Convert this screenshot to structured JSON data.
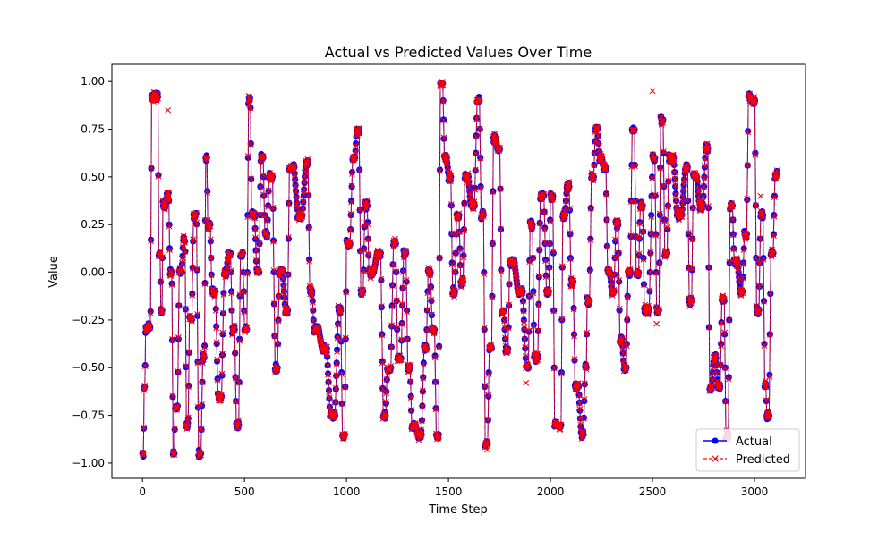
{
  "chart_data": {
    "type": "line",
    "title": "Actual vs Predicted Values Over Time",
    "xlabel": "Time Step",
    "ylabel": "Value",
    "xlim": [
      -150,
      3250
    ],
    "ylim": [
      -1.08,
      1.09
    ],
    "xticks": [
      0,
      500,
      1000,
      1500,
      2000,
      2500,
      3000
    ],
    "yticks": [
      -1.0,
      -0.75,
      -0.5,
      -0.25,
      0.0,
      0.25,
      0.5,
      0.75,
      1.0
    ],
    "xtick_labels": [
      "0",
      "500",
      "1000",
      "1500",
      "2000",
      "2500",
      "3000"
    ],
    "ytick_labels": [
      "−1.00",
      "−0.75",
      "−0.50",
      "−0.25",
      "0.00",
      "0.25",
      "0.50",
      "0.75",
      "1.00"
    ],
    "grid": false,
    "legend_position": "lower-right",
    "x_range": [
      0,
      3110
    ],
    "series": [
      {
        "name": "Actual",
        "color": "#0000ff",
        "marker": "circle",
        "line_style": "solid",
        "keyframes": [
          [
            0,
            -0.95
          ],
          [
            8,
            -0.6
          ],
          [
            15,
            -0.3
          ],
          [
            30,
            -0.28
          ],
          [
            45,
            0.92
          ],
          [
            70,
            0.92
          ],
          [
            80,
            0.1
          ],
          [
            90,
            -0.2
          ],
          [
            100,
            0.35
          ],
          [
            120,
            0.4
          ],
          [
            135,
            0.0
          ],
          [
            150,
            -0.95
          ],
          [
            160,
            -0.7
          ],
          [
            180,
            0.0
          ],
          [
            200,
            0.17
          ],
          [
            215,
            -0.8
          ],
          [
            230,
            -0.25
          ],
          [
            250,
            0.3
          ],
          [
            275,
            -0.95
          ],
          [
            295,
            -0.45
          ],
          [
            310,
            0.6
          ],
          [
            320,
            0.25
          ],
          [
            340,
            -0.1
          ],
          [
            370,
            -0.65
          ],
          [
            400,
            0.0
          ],
          [
            420,
            0.1
          ],
          [
            440,
            -0.3
          ],
          [
            460,
            -0.8
          ],
          [
            480,
            0.1
          ],
          [
            500,
            -0.3
          ],
          [
            520,
            0.9
          ],
          [
            535,
            0.3
          ],
          [
            560,
            0.0
          ],
          [
            580,
            0.6
          ],
          [
            600,
            0.2
          ],
          [
            620,
            0.5
          ],
          [
            650,
            -0.5
          ],
          [
            670,
            0.0
          ],
          [
            700,
            -0.2
          ],
          [
            720,
            0.55
          ],
          [
            760,
            0.3
          ],
          [
            800,
            0.57
          ],
          [
            820,
            -0.1
          ],
          [
            840,
            -0.3
          ],
          [
            880,
            -0.4
          ],
          [
            920,
            -0.75
          ],
          [
            960,
            -0.2
          ],
          [
            980,
            -0.85
          ],
          [
            1000,
            0.15
          ],
          [
            1030,
            0.6
          ],
          [
            1050,
            0.75
          ],
          [
            1070,
            -0.1
          ],
          [
            1090,
            0.35
          ],
          [
            1110,
            0.0
          ],
          [
            1150,
            0.1
          ],
          [
            1180,
            -0.75
          ],
          [
            1200,
            -0.5
          ],
          [
            1230,
            0.15
          ],
          [
            1250,
            -0.45
          ],
          [
            1280,
            0.1
          ],
          [
            1300,
            -0.5
          ],
          [
            1320,
            -0.8
          ],
          [
            1350,
            -0.85
          ],
          [
            1380,
            -0.4
          ],
          [
            1400,
            0.0
          ],
          [
            1420,
            -0.3
          ],
          [
            1440,
            -0.85
          ],
          [
            1460,
            1.0
          ],
          [
            1480,
            0.6
          ],
          [
            1500,
            0.5
          ],
          [
            1520,
            -0.1
          ],
          [
            1540,
            0.3
          ],
          [
            1560,
            -0.05
          ],
          [
            1580,
            0.5
          ],
          [
            1610,
            0.35
          ],
          [
            1640,
            0.9
          ],
          [
            1660,
            0.3
          ],
          [
            1680,
            -0.9
          ],
          [
            1700,
            -0.4
          ],
          [
            1720,
            0.7
          ],
          [
            1740,
            0.65
          ],
          [
            1760,
            -0.2
          ],
          [
            1780,
            -0.4
          ],
          [
            1800,
            0.05
          ],
          [
            1840,
            -0.1
          ],
          [
            1880,
            -0.5
          ],
          [
            1900,
            0.25
          ],
          [
            1920,
            -0.45
          ],
          [
            1950,
            0.4
          ],
          [
            1980,
            -0.1
          ],
          [
            2000,
            0.4
          ],
          [
            2020,
            -0.8
          ],
          [
            2040,
            -0.8
          ],
          [
            2060,
            0.3
          ],
          [
            2080,
            0.45
          ],
          [
            2100,
            -0.05
          ],
          [
            2120,
            -0.6
          ],
          [
            2150,
            -0.85
          ],
          [
            2170,
            -0.5
          ],
          [
            2180,
            -0.15
          ],
          [
            2200,
            0.5
          ],
          [
            2220,
            0.75
          ],
          [
            2240,
            0.6
          ],
          [
            2260,
            0.55
          ],
          [
            2280,
            0.0
          ],
          [
            2300,
            -0.1
          ],
          [
            2320,
            0.25
          ],
          [
            2340,
            -0.35
          ],
          [
            2360,
            -0.5
          ],
          [
            2380,
            0.0
          ],
          [
            2400,
            0.75
          ],
          [
            2420,
            0.0
          ],
          [
            2440,
            0.35
          ],
          [
            2460,
            -0.2
          ],
          [
            2500,
            0.6
          ],
          [
            2520,
            -0.2
          ],
          [
            2540,
            0.8
          ],
          [
            2560,
            0.1
          ],
          [
            2580,
            0.6
          ],
          [
            2620,
            0.3
          ],
          [
            2660,
            0.55
          ],
          [
            2680,
            -0.15
          ],
          [
            2700,
            0.5
          ],
          [
            2730,
            0.35
          ],
          [
            2760,
            0.65
          ],
          [
            2780,
            -0.6
          ],
          [
            2800,
            -0.45
          ],
          [
            2820,
            -0.6
          ],
          [
            2840,
            -0.15
          ],
          [
            2860,
            -0.85
          ],
          [
            2880,
            0.35
          ],
          [
            2900,
            0.05
          ],
          [
            2930,
            -0.1
          ],
          [
            2950,
            0.2
          ],
          [
            2970,
            0.92
          ],
          [
            2990,
            0.9
          ],
          [
            3010,
            -0.2
          ],
          [
            3030,
            0.3
          ],
          [
            3050,
            -0.6
          ],
          [
            3060,
            -0.75
          ],
          [
            3080,
            0.1
          ],
          [
            3100,
            0.5
          ],
          [
            3110,
            0.53
          ]
        ]
      },
      {
        "name": "Predicted",
        "color": "#ff0000",
        "marker": "x",
        "line_style": "dashed",
        "offset_points": [
          [
            125,
            0.85
          ],
          [
            218,
            -0.82
          ],
          [
            700,
            -0.2
          ],
          [
            1460,
            0.98
          ],
          [
            1690,
            -0.93
          ],
          [
            2500,
            0.95
          ],
          [
            2520,
            -0.27
          ],
          [
            2690,
            -0.16
          ],
          [
            3030,
            0.4
          ],
          [
            1880,
            -0.58
          ]
        ]
      }
    ]
  }
}
